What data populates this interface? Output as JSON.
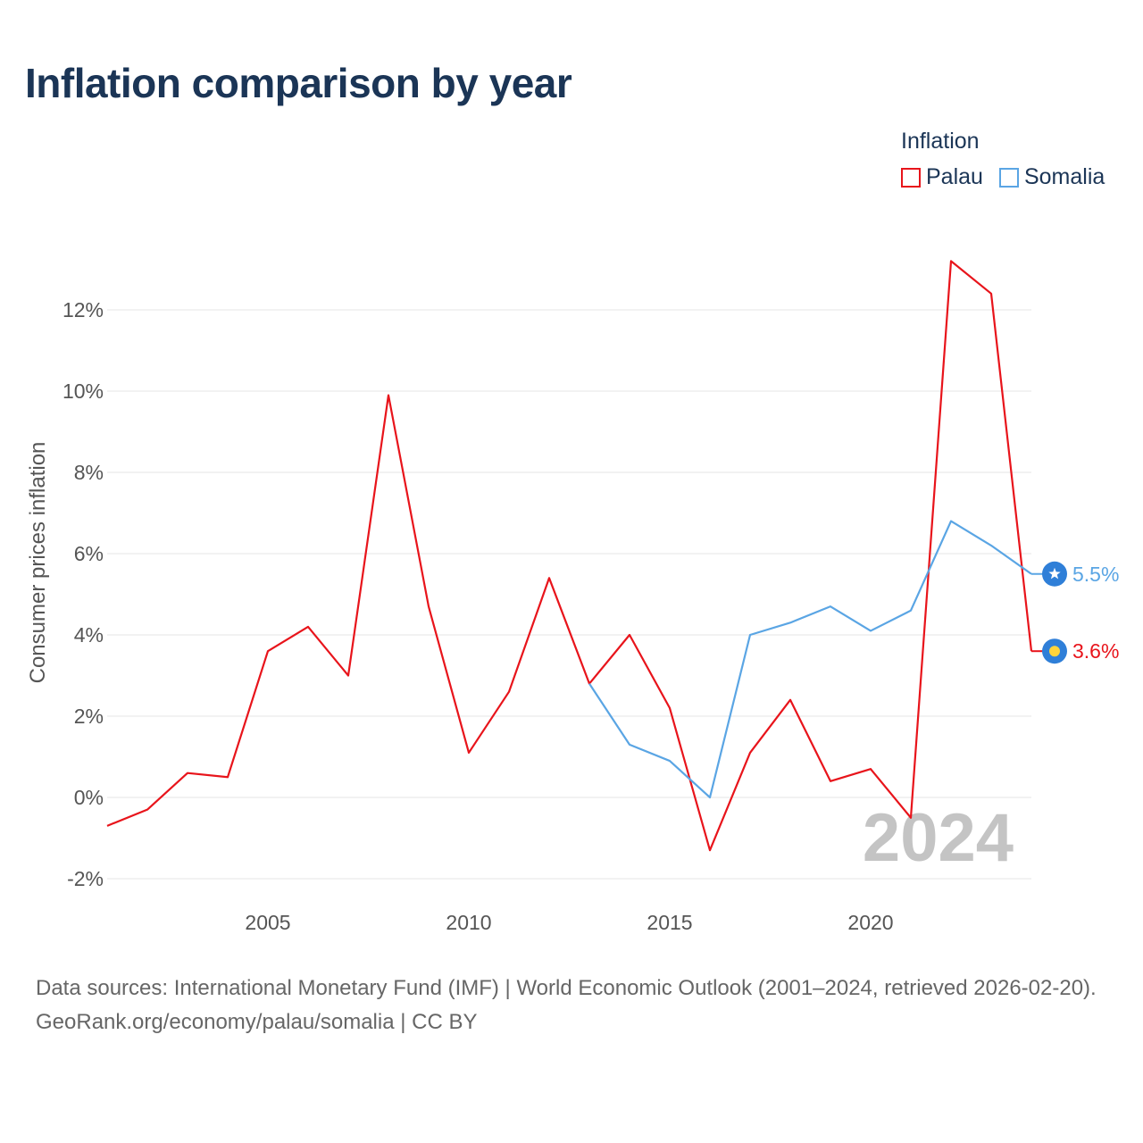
{
  "title": "Inflation comparison by year",
  "legend": {
    "title": "Inflation",
    "items": [
      {
        "name": "Palau",
        "color": "#e8141b"
      },
      {
        "name": "Somalia",
        "color": "#5aa5e4"
      }
    ]
  },
  "chart_data": {
    "type": "line",
    "title": "Inflation comparison by year",
    "xlabel": "",
    "ylabel": "Consumer prices inflation",
    "x": [
      2001,
      2002,
      2003,
      2004,
      2005,
      2006,
      2007,
      2008,
      2009,
      2010,
      2011,
      2012,
      2013,
      2014,
      2015,
      2016,
      2017,
      2018,
      2019,
      2020,
      2021,
      2022,
      2023,
      2024
    ],
    "xlim": [
      2001,
      2024
    ],
    "ylim": [
      -2,
      14
    ],
    "y_ticks": [
      -2,
      0,
      2,
      4,
      6,
      8,
      10,
      12
    ],
    "y_tick_labels": [
      "-2%",
      "0%",
      "2%",
      "4%",
      "6%",
      "8%",
      "10%",
      "12%"
    ],
    "x_ticks": [
      2005,
      2010,
      2015,
      2020
    ],
    "x_tick_labels": [
      "2005",
      "2010",
      "2015",
      "2020"
    ],
    "grid": true,
    "legend_position": "top-right",
    "series": [
      {
        "name": "Palau",
        "color": "#e8141b",
        "values": [
          -0.7,
          -0.3,
          0.6,
          0.5,
          3.6,
          4.2,
          3.0,
          9.9,
          4.7,
          1.1,
          2.6,
          5.4,
          2.8,
          4.0,
          2.2,
          -1.3,
          1.1,
          2.4,
          0.4,
          0.7,
          -0.5,
          13.2,
          12.4,
          3.6
        ],
        "end_label": "3.6%"
      },
      {
        "name": "Somalia",
        "color": "#5aa5e4",
        "values": [
          null,
          null,
          null,
          null,
          null,
          null,
          null,
          null,
          null,
          null,
          null,
          null,
          2.8,
          1.3,
          0.9,
          0.0,
          4.0,
          4.3,
          4.7,
          4.1,
          4.6,
          6.8,
          6.2,
          5.5
        ],
        "end_label": "5.5%"
      }
    ],
    "annotation": "2024"
  },
  "footer": {
    "sources": "Data sources: International Monetary Fund (IMF) | World Economic Outlook (2001–2024, retrieved 2026-02-20).",
    "credit": "GeoRank.org/economy/palau/somalia | CC BY"
  }
}
